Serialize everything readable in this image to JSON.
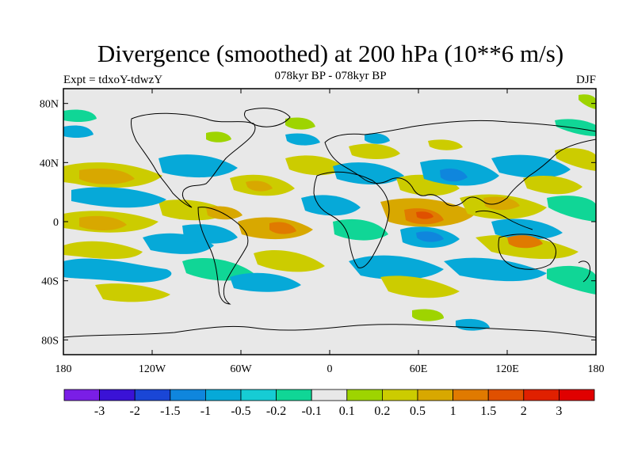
{
  "header": {
    "title": "Divergence (smoothed) at 200 hPa (10**6 m/s)",
    "experiment": "Expt = tdxoY-tdwzY",
    "period": "078kyr BP - 078kyr BP",
    "season": "DJF"
  },
  "map": {
    "projection": "cylindrical equidistant",
    "background_color": "#e8e8e8",
    "lat_ticks": [
      "80N",
      "40N",
      "0",
      "40S",
      "80S"
    ],
    "lon_ticks": [
      "180",
      "120W",
      "60W",
      "0",
      "60E",
      "120E",
      "180"
    ],
    "lon_range": [
      -180,
      180
    ],
    "lat_range": [
      -90,
      90
    ]
  },
  "colorbar": {
    "labels": [
      "-3",
      "-2",
      "-1.5",
      "-1",
      "-0.5",
      "-0.2",
      "-0.1",
      "0.1",
      "0.2",
      "0.5",
      "1",
      "1.5",
      "2",
      "3"
    ],
    "colors": [
      "#7a1ee6",
      "#3a12d6",
      "#1a46d6",
      "#0f86dd",
      "#06a9d8",
      "#16ccd4",
      "#10d696",
      "#e8e8e8",
      "#9ed400",
      "#cccc00",
      "#d8a800",
      "#e07a00",
      "#e05000",
      "#e02000",
      "#e00000"
    ]
  }
}
